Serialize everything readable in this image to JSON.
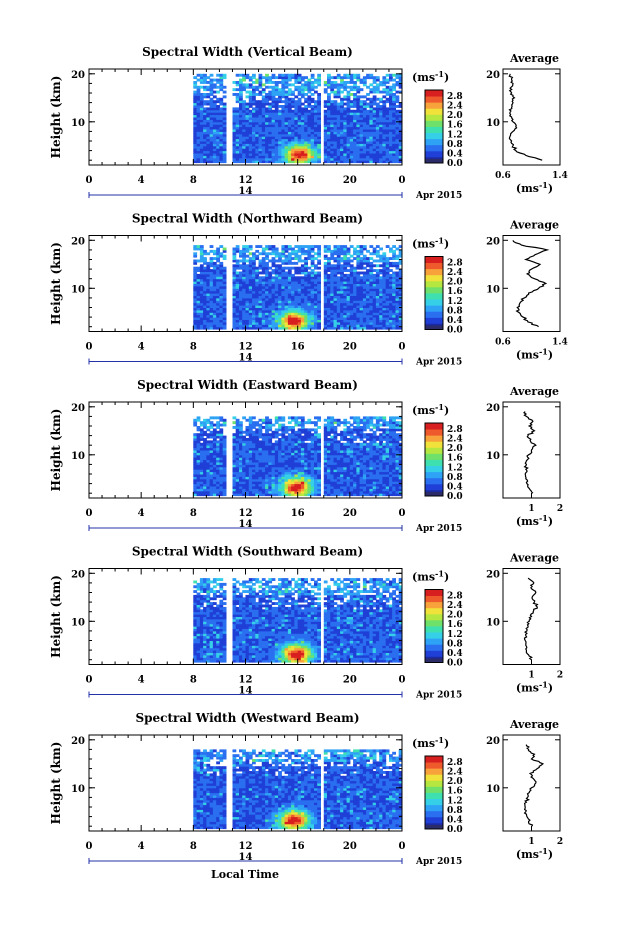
{
  "figure": {
    "xlabel": "Local Time",
    "date_label": "Apr 2015",
    "day_label": "14",
    "units_label": "(ms",
    "units_exp": "-1",
    "units_close": ")",
    "avg_title": "Average",
    "height_label": "Height (km)"
  },
  "colors": {
    "colormap": [
      "#1b2aa0",
      "#1f3fd6",
      "#2a6ff0",
      "#2ea3f5",
      "#35d0e8",
      "#3fe0b0",
      "#6fe06a",
      "#b6e640",
      "#f0e23a",
      "#f7a23a",
      "#ee5a2c",
      "#d81f1f"
    ],
    "lowest": "#2b2b6a",
    "line": "#000000"
  },
  "chart_data": [
    {
      "type": "heatmap",
      "title": "Spectral Width (Vertical Beam)",
      "ylabel": "Height (km)",
      "x_ticks": [
        "0",
        "4",
        "8",
        "12",
        "16",
        "20",
        "0"
      ],
      "xlim": [
        0,
        24
      ],
      "y_ticks": [
        "10",
        "20"
      ],
      "ylim": [
        1,
        21
      ],
      "colorbar": {
        "ticks": [
          "0.0",
          "0.4",
          "0.8",
          "1.2",
          "1.6",
          "2.0",
          "2.4",
          "2.8"
        ],
        "range": [
          0,
          2.8
        ]
      },
      "data_start_hour": 8,
      "gaps_hours": [
        [
          10.5,
          11.0
        ],
        [
          17.6,
          18.0
        ]
      ],
      "top_height_km": 20,
      "hotspot": {
        "hour": 16,
        "height_km": 3,
        "value": 2.8
      },
      "average": {
        "xlim": [
          0.6,
          1.4
        ],
        "x_ticks": [
          "0.6",
          "1.4"
        ],
        "profile_heights_km": [
          2,
          3,
          4,
          5,
          6,
          7,
          8,
          9,
          10,
          11,
          12,
          13,
          14,
          15,
          16,
          17,
          18,
          19,
          20
        ],
        "profile_values": [
          1.15,
          0.92,
          0.78,
          0.74,
          0.72,
          0.7,
          0.74,
          0.78,
          0.74,
          0.72,
          0.7,
          0.72,
          0.74,
          0.76,
          0.72,
          0.7,
          0.74,
          0.72,
          0.7
        ]
      }
    },
    {
      "type": "heatmap",
      "title": "Spectral Width (Northward Beam)",
      "ylabel": "Height (km)",
      "x_ticks": [
        "0",
        "4",
        "8",
        "12",
        "16",
        "20",
        "0"
      ],
      "xlim": [
        0,
        24
      ],
      "y_ticks": [
        "10",
        "20"
      ],
      "ylim": [
        1,
        21
      ],
      "colorbar": {
        "ticks": [
          "0.0",
          "0.4",
          "0.8",
          "1.2",
          "1.6",
          "2.0",
          "2.4",
          "2.8"
        ],
        "range": [
          0,
          2.8
        ]
      },
      "data_start_hour": 8,
      "gaps_hours": [
        [
          10.5,
          11.0
        ],
        [
          17.6,
          18.0
        ]
      ],
      "top_height_km": 19,
      "hotspot": {
        "hour": 15.6,
        "height_km": 3,
        "value": 2.8
      },
      "average": {
        "xlim": [
          0.6,
          1.4
        ],
        "x_ticks": [
          "0.6",
          "1.4"
        ],
        "profile_heights_km": [
          2,
          3,
          4,
          5,
          6,
          7,
          8,
          9,
          10,
          11,
          12,
          13,
          14,
          15,
          16,
          17,
          18,
          19,
          20
        ],
        "profile_values": [
          1.1,
          0.95,
          0.88,
          0.82,
          0.8,
          0.84,
          0.9,
          0.96,
          1.1,
          1.2,
          1.04,
          0.94,
          1.0,
          1.12,
          0.92,
          1.05,
          1.22,
          0.86,
          0.74
        ]
      }
    },
    {
      "type": "heatmap",
      "title": "Spectral Width (Eastward Beam)",
      "ylabel": "Height (km)",
      "x_ticks": [
        "0",
        "4",
        "8",
        "12",
        "16",
        "20",
        "0"
      ],
      "xlim": [
        0,
        24
      ],
      "y_ticks": [
        "10",
        "20"
      ],
      "ylim": [
        1,
        21
      ],
      "colorbar": {
        "ticks": [
          "0.0",
          "0.4",
          "0.8",
          "1.2",
          "1.6",
          "2.0",
          "2.4",
          "2.8"
        ],
        "range": [
          0,
          2.8
        ]
      },
      "data_start_hour": 8,
      "gaps_hours": [
        [
          10.5,
          11.0
        ],
        [
          17.6,
          18.0
        ]
      ],
      "top_height_km": 18,
      "hotspot": {
        "hour": 15.8,
        "height_km": 3,
        "value": 2.8
      },
      "average": {
        "xlim": [
          0,
          2
        ],
        "x_ticks": [
          "1",
          "2"
        ],
        "profile_heights_km": [
          2,
          3,
          4,
          5,
          6,
          7,
          8,
          9,
          10,
          11,
          12,
          13,
          14,
          15,
          16,
          17,
          18,
          19
        ],
        "profile_values": [
          1.05,
          0.92,
          0.84,
          0.8,
          0.78,
          0.8,
          0.82,
          0.86,
          0.9,
          1.0,
          1.15,
          0.95,
          0.88,
          1.1,
          0.92,
          1.05,
          0.82,
          0.78
        ]
      }
    },
    {
      "type": "heatmap",
      "title": "Spectral Width (Southward Beam)",
      "ylabel": "Height (km)",
      "x_ticks": [
        "0",
        "4",
        "8",
        "12",
        "16",
        "20",
        "0"
      ],
      "xlim": [
        0,
        24
      ],
      "y_ticks": [
        "10",
        "20"
      ],
      "ylim": [
        1,
        21
      ],
      "colorbar": {
        "ticks": [
          "0.0",
          "0.4",
          "0.8",
          "1.2",
          "1.6",
          "2.0",
          "2.4",
          "2.8"
        ],
        "range": [
          0,
          2.8
        ]
      },
      "data_start_hour": 8,
      "gaps_hours": [
        [
          10.5,
          11.0
        ],
        [
          17.6,
          18.0
        ]
      ],
      "top_height_km": 19,
      "hotspot": {
        "hour": 15.8,
        "height_km": 3,
        "value": 2.8
      },
      "average": {
        "xlim": [
          0,
          2
        ],
        "x_ticks": [
          "1",
          "2"
        ],
        "profile_heights_km": [
          2,
          3,
          4,
          5,
          6,
          7,
          8,
          9,
          10,
          11,
          12,
          13,
          14,
          15,
          16,
          17,
          18,
          19
        ],
        "profile_values": [
          1.0,
          0.9,
          0.82,
          0.8,
          0.78,
          0.8,
          0.84,
          0.88,
          0.92,
          1.0,
          1.06,
          1.2,
          1.1,
          1.02,
          1.15,
          0.98,
          1.08,
          0.88
        ]
      }
    },
    {
      "type": "heatmap",
      "title": "Spectral Width (Westward Beam)",
      "ylabel": "Height (km)",
      "x_ticks": [
        "0",
        "4",
        "8",
        "12",
        "16",
        "20",
        "0"
      ],
      "xlim": [
        0,
        24
      ],
      "y_ticks": [
        "10",
        "20"
      ],
      "ylim": [
        1,
        21
      ],
      "colorbar": {
        "ticks": [
          "0.0",
          "0.4",
          "0.8",
          "1.2",
          "1.6",
          "2.0",
          "2.4",
          "2.8"
        ],
        "range": [
          0,
          2.8
        ]
      },
      "data_start_hour": 8,
      "gaps_hours": [
        [
          10.5,
          11.0
        ],
        [
          17.6,
          18.0
        ]
      ],
      "top_height_km": 18,
      "hotspot": {
        "hour": 15.6,
        "height_km": 3,
        "value": 2.8
      },
      "average": {
        "xlim": [
          0,
          2
        ],
        "x_ticks": [
          "1",
          "2"
        ],
        "profile_heights_km": [
          2,
          3,
          4,
          5,
          6,
          7,
          8,
          9,
          10,
          11,
          12,
          13,
          14,
          15,
          16,
          17,
          18,
          19
        ],
        "profile_values": [
          1.02,
          0.9,
          0.84,
          0.8,
          0.78,
          0.82,
          0.86,
          0.92,
          1.0,
          1.15,
          1.05,
          0.95,
          1.2,
          1.4,
          1.0,
          1.1,
          0.9,
          0.82
        ]
      }
    }
  ]
}
